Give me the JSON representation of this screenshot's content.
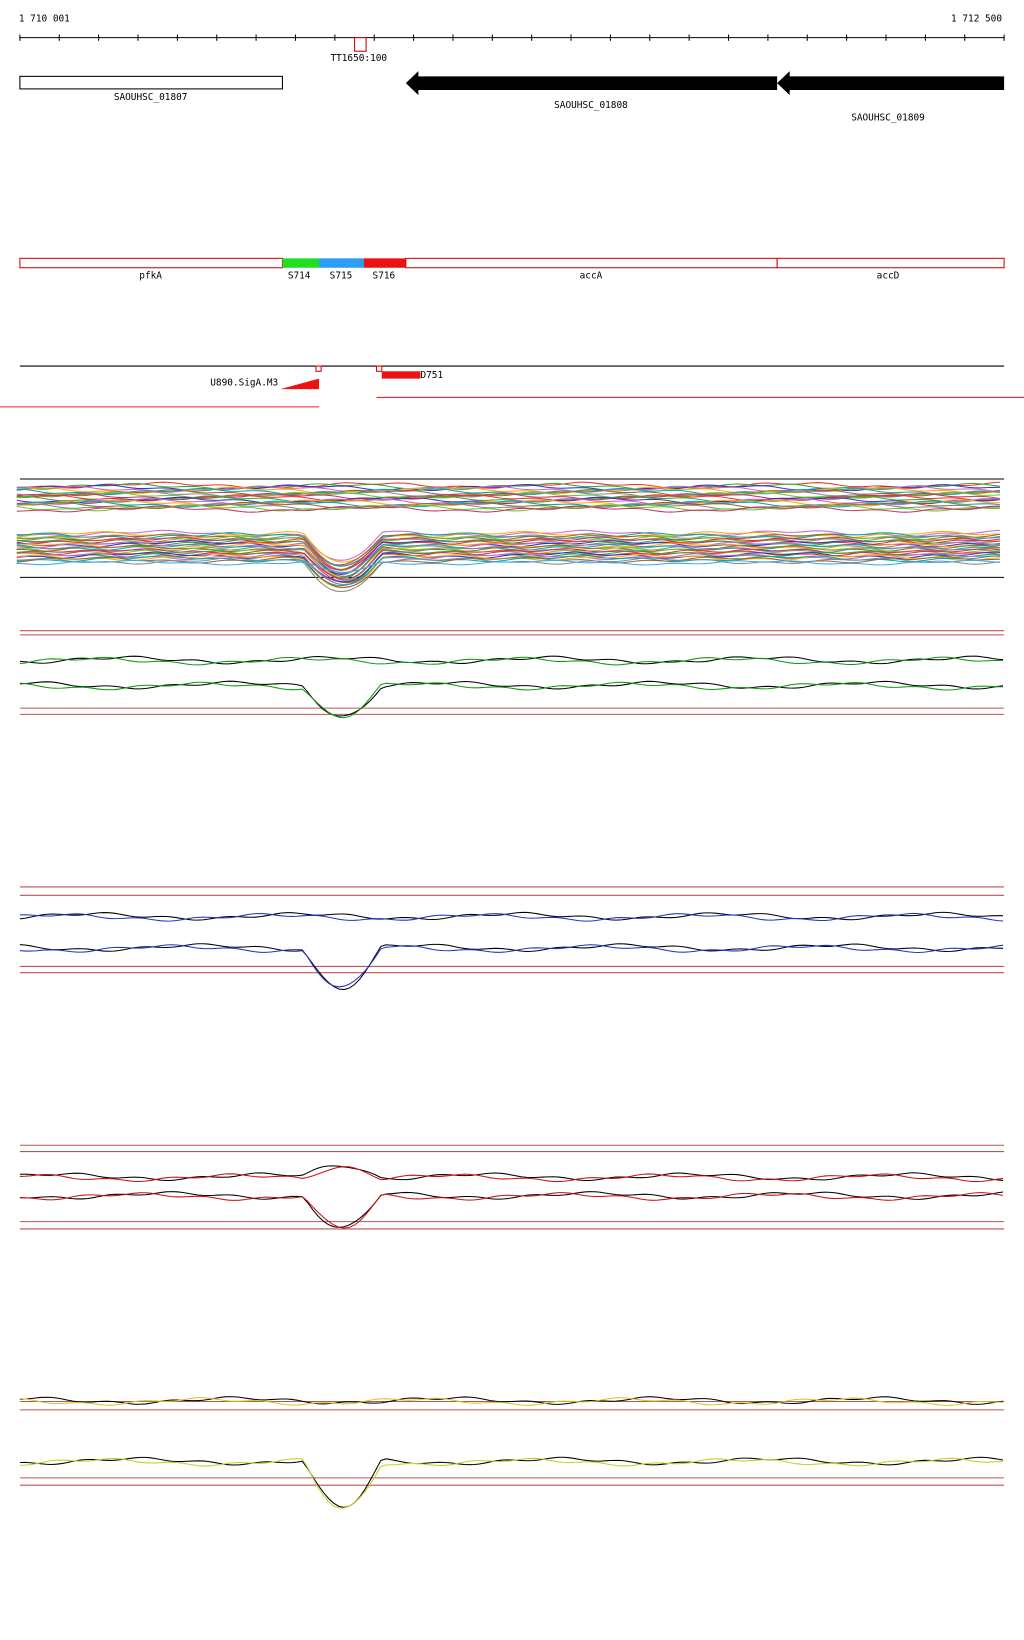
{
  "ruler": {
    "start": "1 710 001",
    "end": "1 712 500"
  },
  "terminator": "TT1650:100",
  "genes": [
    "SAOUHSC_01807",
    "SAOUHSC_01808",
    "SAOUHSC_01809"
  ],
  "segments": [
    "pfkA",
    "S714",
    "S715",
    "S716",
    "accA",
    "accD"
  ],
  "features": [
    "U890.SigA.M3",
    "D751"
  ]
}
